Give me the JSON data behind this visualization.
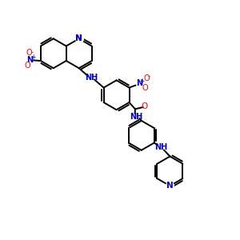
{
  "background_color": "#ffffff",
  "bond_color": "#000000",
  "nitrogen_color": "#0000cc",
  "oxygen_color": "#ff0000",
  "line_width": 1.4,
  "figsize": [
    3.0,
    3.0
  ],
  "dpi": 100,
  "xlim": [
    0,
    10
  ],
  "ylim": [
    0,
    10
  ]
}
